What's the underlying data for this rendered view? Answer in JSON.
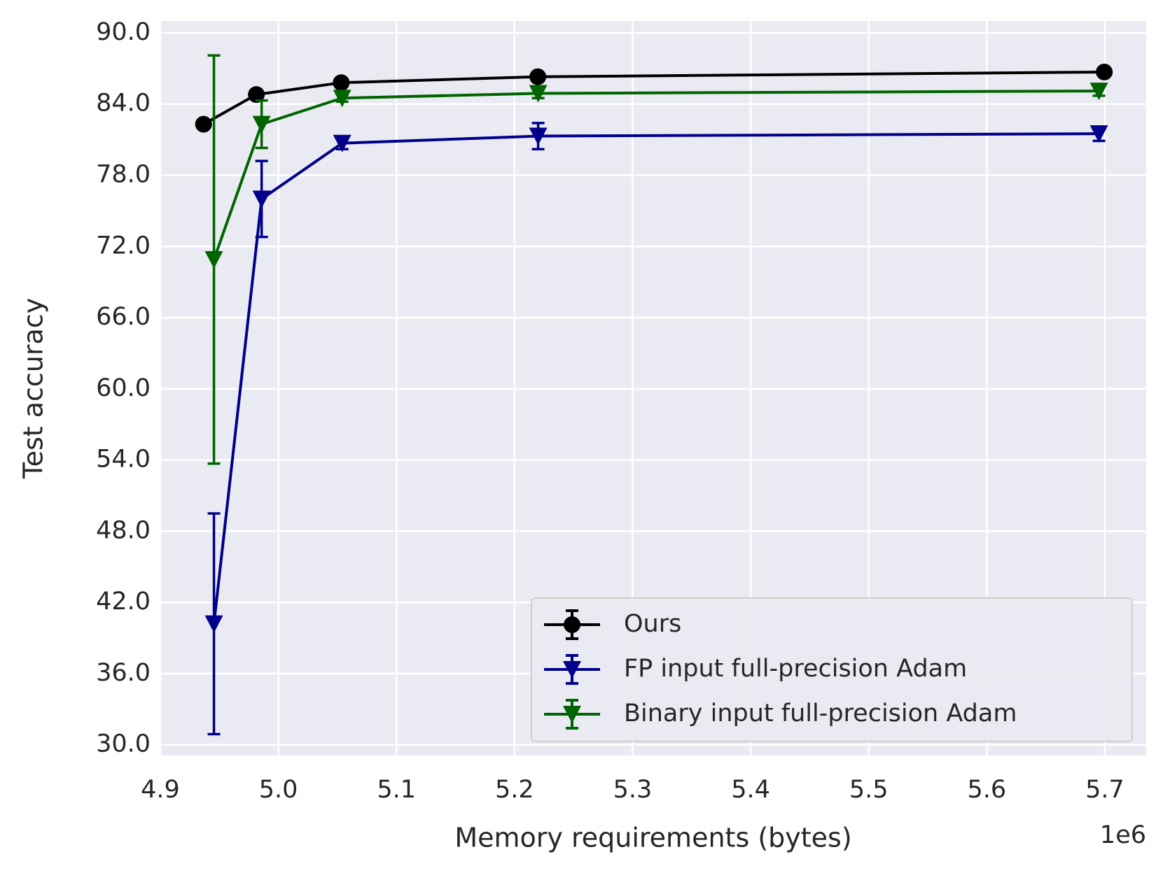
{
  "chart_data": {
    "type": "line",
    "x_label": "Memory requirements (bytes)",
    "y_label": "Test accuracy",
    "x_offset_label": "1e6",
    "xlim": [
      4.9,
      5.735
    ],
    "ylim": [
      29.1,
      91.0
    ],
    "xticks": [
      4.9,
      {
        "value": 5.0,
        "label": "5.0"
      },
      5.1,
      5.2,
      5.3,
      5.4,
      5.5,
      5.6,
      5.7
    ],
    "yticks": [
      {
        "value": 30,
        "label": "30.0"
      },
      {
        "value": 36,
        "label": "36.0"
      },
      {
        "value": 42,
        "label": "42.0"
      },
      {
        "value": 48,
        "label": "48.0"
      },
      {
        "value": 54,
        "label": "54.0"
      },
      {
        "value": 60,
        "label": "60.0"
      },
      {
        "value": 66,
        "label": "66.0"
      },
      {
        "value": 72,
        "label": "72.0"
      },
      {
        "value": 78,
        "label": "78.0"
      },
      {
        "value": 84,
        "label": "84.0"
      },
      {
        "value": 90,
        "label": "90.0"
      }
    ],
    "grid": true,
    "legend": "lower right",
    "series": [
      {
        "name": "Ours",
        "color": "#000000",
        "marker": "circle",
        "x": [
          4.9366,
          4.9813,
          5.0532,
          5.2197,
          5.6995
        ],
        "values": [
          82.3,
          84.8,
          85.8,
          86.3,
          86.7
        ],
        "errors": [
          0.2,
          0.2,
          0.2,
          0.2,
          0.2
        ]
      },
      {
        "name": "FP input full-precision Adam",
        "color": "#00008b",
        "marker": "triangle-down",
        "x": [
          4.9454,
          4.9858,
          5.054,
          5.22,
          5.695
        ],
        "values": [
          40.2,
          76.0,
          80.7,
          81.3,
          81.5
        ],
        "errors": [
          9.3,
          3.2,
          0.5,
          1.1,
          0.6
        ]
      },
      {
        "name": "Binary input full-precision Adam",
        "color": "#006400",
        "marker": "triangle-down",
        "x": [
          4.9454,
          4.9858,
          5.054,
          5.22,
          5.695
        ],
        "values": [
          70.9,
          82.3,
          84.5,
          84.9,
          85.1
        ],
        "errors": [
          17.2,
          2.0,
          0.3,
          0.4,
          0.4
        ]
      }
    ]
  }
}
